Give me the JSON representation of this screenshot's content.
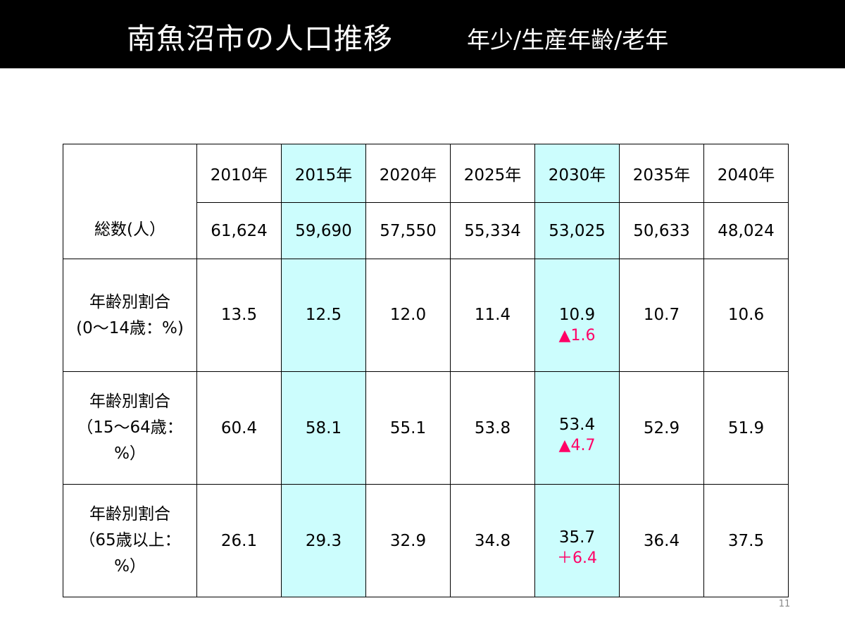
{
  "title": {
    "main": "南魚沼市の人口推移",
    "sub": "年少/生産年齢/老年"
  },
  "table": {
    "years": [
      "2010年",
      "2015年",
      "2020年",
      "2025年",
      "2030年",
      "2035年",
      "2040年"
    ],
    "highlight_color": "#ccfdfd",
    "delta_color": "#ff0066",
    "rows": [
      {
        "label_lines": [
          "総数(人）"
        ],
        "values": [
          "61,624",
          "59,690",
          "57,550",
          "55,334",
          "53,025",
          "50,633",
          "48,024"
        ],
        "delta": ""
      },
      {
        "label_lines": [
          "年齢別割合",
          "(0～14歳：%)"
        ],
        "values": [
          "13.5",
          "12.5",
          "12.0",
          "11.4",
          "10.9",
          "10.7",
          "10.6"
        ],
        "delta": "▲1.6"
      },
      {
        "label_lines": [
          "年齢別割合",
          "（15～64歳：",
          "%）"
        ],
        "values": [
          "60.4",
          "58.1",
          "55.1",
          "53.8",
          "53.4",
          "52.9",
          "51.9"
        ],
        "delta": "▲4.7"
      },
      {
        "label_lines": [
          "年齢別割合",
          "（65歳以上：",
          "%）"
        ],
        "values": [
          "26.1",
          "29.3",
          "32.9",
          "34.8",
          "35.7",
          "36.4",
          "37.5"
        ],
        "delta": "＋6.4"
      }
    ]
  },
  "page_number": "11"
}
